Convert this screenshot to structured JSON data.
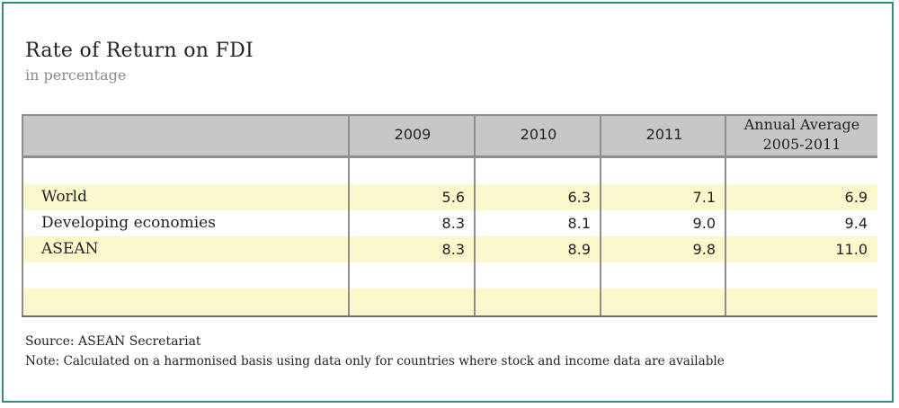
{
  "title": "Rate of Return on FDI",
  "subtitle": "in percentage",
  "source": "Source: ASEAN Secretariat",
  "note": "Note: Calculated on a harmonised basis using data only for countries where stock and income data are available",
  "colors": {
    "frame": "#2e8f82",
    "header_bg": "#c6c6c6",
    "band_yellow": "#fbf8cc",
    "rules": "#8e8e8e"
  },
  "chart_data": {
    "type": "table",
    "columns": [
      "2009",
      "2010",
      "2011",
      "Annual Average",
      "2005-2011"
    ],
    "header_last_lines": [
      "Annual Average",
      "2005-2011"
    ],
    "rows": [
      {
        "label": "World",
        "values": [
          "5.6",
          "6.3",
          "7.1",
          "6.9"
        ]
      },
      {
        "label": "Developing economies",
        "values": [
          "8.3",
          "8.1",
          "9.0",
          "9.4"
        ]
      },
      {
        "label": "ASEAN",
        "values": [
          "8.3",
          "8.9",
          "9.8",
          "11.0"
        ]
      }
    ]
  }
}
